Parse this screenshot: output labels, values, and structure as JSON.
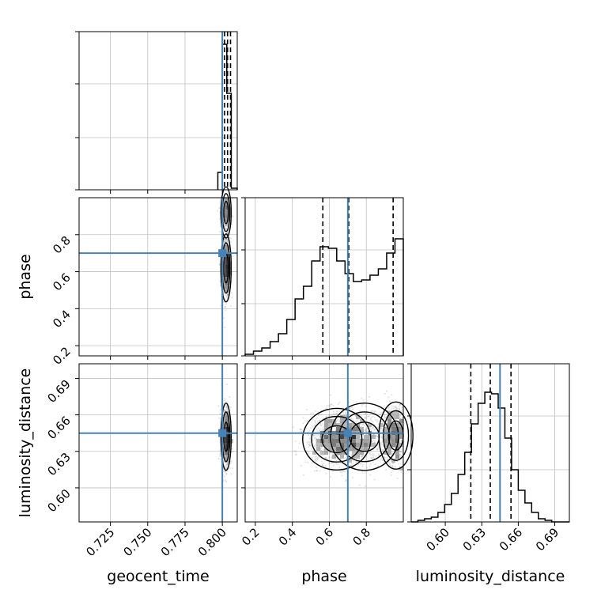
{
  "chart_data": {
    "type": "corner",
    "parameters": [
      "geocent_time",
      "phase",
      "luminosity_distance"
    ],
    "axis_labels": {
      "x": [
        "geocent_time",
        "phase",
        "luminosity_distance"
      ],
      "y": [
        "phase",
        "luminosity_distance"
      ]
    },
    "ranges": {
      "geocent_time": [
        0.704,
        0.81
      ],
      "phase": [
        0.145,
        1.0
      ],
      "luminosity_distance": [
        0.572,
        0.702
      ]
    },
    "ticks": {
      "geocent_time": {
        "values": [
          0.725,
          0.75,
          0.775,
          0.8
        ],
        "labels": [
          "0.725",
          "0.750",
          "0.775",
          "0.800"
        ]
      },
      "phase": {
        "values": [
          0.2,
          0.4,
          0.6,
          0.8
        ],
        "labels": [
          "0.2",
          "0.4",
          "0.6",
          "0.8"
        ]
      },
      "luminosity_distance": {
        "values": [
          0.6,
          0.63,
          0.66,
          0.69
        ],
        "labels": [
          "0.60",
          "0.63",
          "0.66",
          "0.69"
        ]
      }
    },
    "truths": {
      "geocent_time": 0.8,
      "phase": 0.7,
      "luminosity_distance": 0.645
    },
    "quantiles": {
      "geocent_time": [
        0.8015,
        0.8035,
        0.8055
      ],
      "phase": [
        0.565,
        0.705,
        0.945
      ],
      "luminosity_distance": [
        0.621,
        0.637,
        0.654
      ]
    },
    "marginals": {
      "geocent_time": {
        "edges": [
          0.797,
          0.8,
          0.803,
          0.806,
          0.81
        ],
        "counts": [
          0.11,
          0.92,
          0.61,
          0.01
        ]
      },
      "phase": {
        "edges": [
          0.145,
          0.19,
          0.235,
          0.28,
          0.325,
          0.37,
          0.415,
          0.46,
          0.505,
          0.55,
          0.595,
          0.64,
          0.685,
          0.73,
          0.775,
          0.82,
          0.865,
          0.91,
          0.955,
          1.0
        ],
        "counts": [
          0.01,
          0.03,
          0.05,
          0.09,
          0.14,
          0.23,
          0.36,
          0.44,
          0.6,
          0.69,
          0.68,
          0.6,
          0.52,
          0.47,
          0.48,
          0.51,
          0.55,
          0.65,
          0.74
        ]
      },
      "luminosity_distance": {
        "edges": [
          0.572,
          0.5775,
          0.583,
          0.5885,
          0.594,
          0.5995,
          0.605,
          0.6105,
          0.616,
          0.6215,
          0.627,
          0.6325,
          0.638,
          0.6435,
          0.649,
          0.6545,
          0.66,
          0.6655,
          0.671,
          0.6765,
          0.682,
          0.6875,
          0.693,
          0.6985,
          0.702
        ],
        "counts": [
          0.0,
          0.01,
          0.02,
          0.03,
          0.06,
          0.11,
          0.18,
          0.3,
          0.44,
          0.62,
          0.75,
          0.82,
          0.81,
          0.72,
          0.53,
          0.33,
          0.2,
          0.12,
          0.06,
          0.02,
          0.01,
          0.0,
          0.0,
          0.0
        ]
      }
    },
    "samples": {
      "phase_luminosity_distance": {
        "clusters": [
          {
            "mean": [
              0.64,
              0.64
            ],
            "sd": [
              0.08,
              0.011
            ],
            "n": 1100
          },
          {
            "mean": [
              0.96,
              0.643
            ],
            "sd": [
              0.04,
              0.012
            ],
            "n": 650
          },
          {
            "mean": [
              0.79,
              0.642
            ],
            "sd": [
              0.08,
              0.012
            ],
            "n": 500
          }
        ]
      },
      "geocent_time_phase": {
        "clusters": [
          {
            "mean": [
              0.8025,
              0.62
            ],
            "sd": [
              0.0015,
              0.08
            ],
            "n": 900
          },
          {
            "mean": [
              0.8025,
              0.92
            ],
            "sd": [
              0.0015,
              0.06
            ],
            "n": 450
          }
        ]
      },
      "geocent_time_luminosity_distance": {
        "clusters": [
          {
            "mean": [
              0.8025,
              0.642
            ],
            "sd": [
              0.0015,
              0.012
            ],
            "n": 1100
          }
        ]
      }
    },
    "colors": {
      "truth": "#4682b4",
      "contour": "#000000",
      "histogram": "#000000",
      "grid": "#c0c0c0",
      "points": "#888888"
    },
    "grid": true
  }
}
